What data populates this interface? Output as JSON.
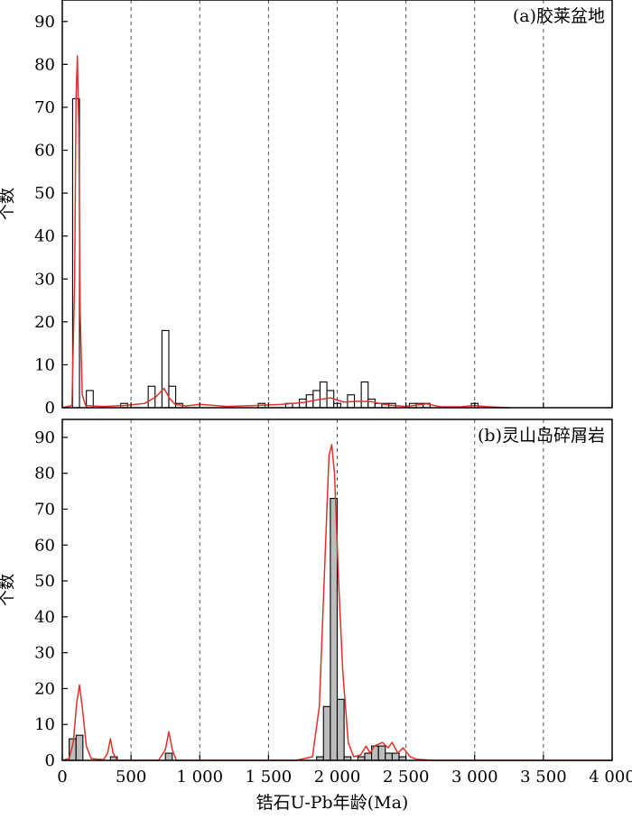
{
  "chart_data": [
    {
      "type": "bar",
      "panel_label": "(a)胶莱盆地",
      "ylabel": "个数",
      "ylim": [
        0,
        95
      ],
      "yticks": [
        0,
        10,
        20,
        30,
        40,
        50,
        60,
        70,
        80,
        90
      ],
      "bin_width": 50,
      "bar_style": "open",
      "bins": [
        {
          "x0": 75,
          "count": 72
        },
        {
          "x0": 175,
          "count": 4
        },
        {
          "x0": 425,
          "count": 1
        },
        {
          "x0": 625,
          "count": 5
        },
        {
          "x0": 725,
          "count": 18
        },
        {
          "x0": 775,
          "count": 5
        },
        {
          "x0": 825,
          "count": 1
        },
        {
          "x0": 1425,
          "count": 1
        },
        {
          "x0": 1625,
          "count": 1
        },
        {
          "x0": 1725,
          "count": 2
        },
        {
          "x0": 1775,
          "count": 3
        },
        {
          "x0": 1825,
          "count": 4
        },
        {
          "x0": 1875,
          "count": 6
        },
        {
          "x0": 1925,
          "count": 4
        },
        {
          "x0": 1975,
          "count": 1
        },
        {
          "x0": 2075,
          "count": 3
        },
        {
          "x0": 2175,
          "count": 6
        },
        {
          "x0": 2225,
          "count": 2
        },
        {
          "x0": 2275,
          "count": 1
        },
        {
          "x0": 2325,
          "count": 1
        },
        {
          "x0": 2375,
          "count": 1
        },
        {
          "x0": 2525,
          "count": 1
        },
        {
          "x0": 2575,
          "count": 1
        },
        {
          "x0": 2625,
          "count": 1
        },
        {
          "x0": 2975,
          "count": 1
        }
      ],
      "kde": [
        [
          0,
          0
        ],
        [
          70,
          0.5
        ],
        [
          90,
          30
        ],
        [
          100,
          72
        ],
        [
          110,
          82
        ],
        [
          120,
          65
        ],
        [
          130,
          22
        ],
        [
          145,
          3
        ],
        [
          170,
          0.5
        ],
        [
          300,
          0.3
        ],
        [
          450,
          0.5
        ],
        [
          600,
          1
        ],
        [
          680,
          2.5
        ],
        [
          740,
          4.5
        ],
        [
          780,
          2.2
        ],
        [
          820,
          0.8
        ],
        [
          900,
          0.4
        ],
        [
          1000,
          0.8
        ],
        [
          1200,
          0.3
        ],
        [
          1400,
          0.5
        ],
        [
          1600,
          0.8
        ],
        [
          1750,
          1.2
        ],
        [
          1850,
          1.8
        ],
        [
          1950,
          2.3
        ],
        [
          2050,
          1.3
        ],
        [
          2150,
          1.5
        ],
        [
          2250,
          1.4
        ],
        [
          2350,
          0.7
        ],
        [
          2500,
          0.3
        ],
        [
          2650,
          0.9
        ],
        [
          2750,
          0.2
        ],
        [
          2900,
          0.2
        ],
        [
          3000,
          0.5
        ],
        [
          3100,
          0.2
        ],
        [
          3250,
          0
        ]
      ]
    },
    {
      "type": "bar",
      "panel_label": "(b)灵山岛碎屑岩",
      "ylabel": "个数",
      "ylim": [
        0,
        95
      ],
      "yticks": [
        0,
        10,
        20,
        30,
        40,
        50,
        60,
        70,
        80,
        90
      ],
      "bin_width": 50,
      "bar_style": "filled",
      "bins": [
        {
          "x0": 50,
          "count": 6
        },
        {
          "x0": 100,
          "count": 7
        },
        {
          "x0": 350,
          "count": 1
        },
        {
          "x0": 750,
          "count": 2
        },
        {
          "x0": 1850,
          "count": 1
        },
        {
          "x0": 1900,
          "count": 15
        },
        {
          "x0": 1950,
          "count": 73
        },
        {
          "x0": 2000,
          "count": 17
        },
        {
          "x0": 2050,
          "count": 1
        },
        {
          "x0": 2150,
          "count": 1
        },
        {
          "x0": 2200,
          "count": 2
        },
        {
          "x0": 2250,
          "count": 4
        },
        {
          "x0": 2300,
          "count": 4
        },
        {
          "x0": 2350,
          "count": 2
        },
        {
          "x0": 2400,
          "count": 2
        },
        {
          "x0": 2450,
          "count": 1
        }
      ],
      "kde": [
        [
          0,
          0
        ],
        [
          50,
          0.5
        ],
        [
          80,
          5
        ],
        [
          105,
          16
        ],
        [
          125,
          21
        ],
        [
          145,
          15
        ],
        [
          175,
          4
        ],
        [
          210,
          0.5
        ],
        [
          300,
          0.2
        ],
        [
          330,
          2
        ],
        [
          350,
          6
        ],
        [
          370,
          2
        ],
        [
          400,
          0
        ],
        [
          700,
          0
        ],
        [
          750,
          3
        ],
        [
          775,
          8
        ],
        [
          800,
          3
        ],
        [
          830,
          0
        ],
        [
          1700,
          0
        ],
        [
          1820,
          1
        ],
        [
          1870,
          15
        ],
        [
          1910,
          55
        ],
        [
          1940,
          85
        ],
        [
          1960,
          88
        ],
        [
          1980,
          80
        ],
        [
          2010,
          50
        ],
        [
          2040,
          25
        ],
        [
          2080,
          5
        ],
        [
          2120,
          1
        ],
        [
          2170,
          1.5
        ],
        [
          2210,
          4
        ],
        [
          2240,
          2
        ],
        [
          2270,
          4
        ],
        [
          2330,
          5
        ],
        [
          2370,
          3.5
        ],
        [
          2400,
          5
        ],
        [
          2440,
          2
        ],
        [
          2480,
          3.5
        ],
        [
          2530,
          1
        ],
        [
          2580,
          0.3
        ],
        [
          2700,
          0
        ],
        [
          4000,
          0
        ]
      ]
    }
  ],
  "x_axis": {
    "label": "锆石U-Pb年龄(Ma)",
    "xlim": [
      0,
      4000
    ],
    "ticks": [
      0,
      500,
      1000,
      1500,
      2000,
      2500,
      3000,
      3500,
      4000
    ],
    "tick_labels": [
      "0",
      "500",
      "1 000",
      "1 500",
      "2 000",
      "2 500",
      "3 000",
      "3 500",
      "4 000"
    ],
    "dashed_gridlines": [
      500,
      1000,
      1500,
      2000,
      2500,
      3000,
      3500
    ]
  },
  "colors": {
    "axis": "#000000",
    "grid": "#555555",
    "kde_line": "#e0322a",
    "open_bar_fill": "#ffffff",
    "filled_bar_fill": "#bdbdbd"
  }
}
